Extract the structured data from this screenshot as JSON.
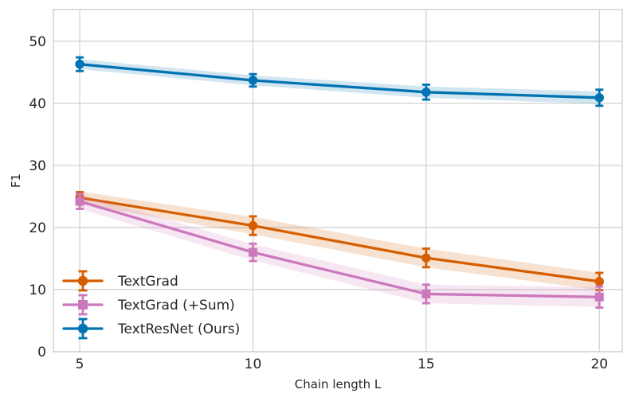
{
  "chart_data": {
    "type": "line",
    "title": "",
    "xlabel": "Chain length L",
    "ylabel": "F1",
    "x": [
      5,
      10,
      15,
      20
    ],
    "xticks": [
      5,
      10,
      15,
      20
    ],
    "yticks": [
      0,
      10,
      20,
      30,
      40,
      50
    ],
    "xlim": [
      4.24,
      20.66
    ],
    "ylim": [
      0,
      55.1
    ],
    "grid": true,
    "legend": {
      "position": "lower-left",
      "frame": false
    },
    "series": [
      {
        "name": "TextGrad",
        "color": "#D55E00",
        "marker": "circle",
        "values": [
          24.8,
          20.3,
          15.1,
          11.3
        ],
        "errors": [
          0.9,
          1.5,
          1.5,
          1.4
        ],
        "band_halfwidths": [
          1.0,
          1.4,
          1.5,
          1.4
        ]
      },
      {
        "name": "TextGrad (+Sum)",
        "color": "#CC78BC",
        "marker": "square",
        "values": [
          24.2,
          16.0,
          9.3,
          8.8
        ],
        "errors": [
          1.2,
          1.4,
          1.5,
          1.7
        ],
        "band_halfwidths": [
          1.2,
          1.3,
          1.5,
          1.6
        ]
      },
      {
        "name": "TextResNet (Ours)",
        "color": "#0173B2",
        "marker": "circle",
        "values": [
          46.3,
          43.7,
          41.8,
          40.9
        ],
        "errors": [
          1.1,
          1.0,
          1.2,
          1.3
        ],
        "band_halfwidths": [
          0.8,
          0.8,
          0.9,
          1.0
        ]
      }
    ],
    "colors": {
      "grid": "#D2D2D2",
      "spine": "#CBCBCB",
      "text": "#262626",
      "background": "#FFFFFF",
      "band_opacity": 0.18
    }
  }
}
